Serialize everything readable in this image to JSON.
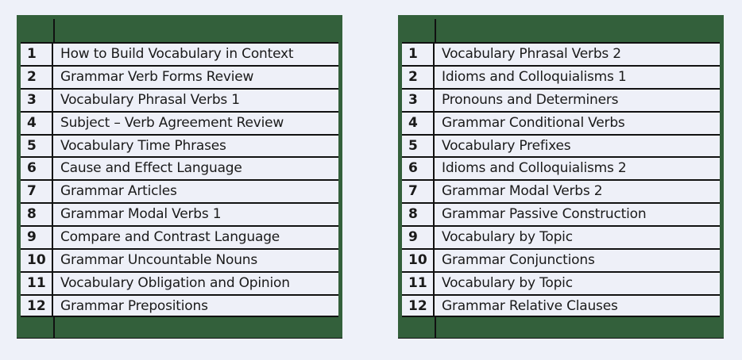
{
  "colors": {
    "header_green": "#33603b",
    "cell_bg": "#eef0f8",
    "page_bg": "#eef1f9"
  },
  "tables": [
    {
      "rows": [
        {
          "num": "1",
          "title": "How to Build Vocabulary in Context"
        },
        {
          "num": "2",
          "title": "Grammar Verb Forms Review"
        },
        {
          "num": "3",
          "title": "Vocabulary Phrasal Verbs 1"
        },
        {
          "num": "4",
          "title": "Subject – Verb Agreement Review"
        },
        {
          "num": "5",
          "title": "Vocabulary Time Phrases"
        },
        {
          "num": "6",
          "title": "Cause and Effect Language"
        },
        {
          "num": "7",
          "title": "Grammar Articles"
        },
        {
          "num": "8",
          "title": "Grammar Modal Verbs 1"
        },
        {
          "num": "9",
          "title": "Compare and Contrast Language"
        },
        {
          "num": "10",
          "title": "Grammar Uncountable Nouns"
        },
        {
          "num": "11",
          "title": "Vocabulary Obligation and Opinion"
        },
        {
          "num": "12",
          "title": "Grammar Prepositions"
        }
      ]
    },
    {
      "rows": [
        {
          "num": "1",
          "title": "Vocabulary Phrasal Verbs 2"
        },
        {
          "num": "2",
          "title": "Idioms and Colloquialisms 1"
        },
        {
          "num": "3",
          "title": "Pronouns and Determiners"
        },
        {
          "num": "4",
          "title": "Grammar Conditional Verbs"
        },
        {
          "num": "5",
          "title": "Vocabulary Prefixes"
        },
        {
          "num": "6",
          "title": "Idioms and Colloquialisms 2"
        },
        {
          "num": "7",
          "title": "Grammar Modal Verbs 2"
        },
        {
          "num": "8",
          "title": "Grammar Passive Construction"
        },
        {
          "num": "9",
          "title": "Vocabulary by Topic"
        },
        {
          "num": "10",
          "title": "Grammar Conjunctions"
        },
        {
          "num": "11",
          "title": "Vocabulary by Topic"
        },
        {
          "num": "12",
          "title": "Grammar Relative Clauses"
        }
      ]
    }
  ]
}
